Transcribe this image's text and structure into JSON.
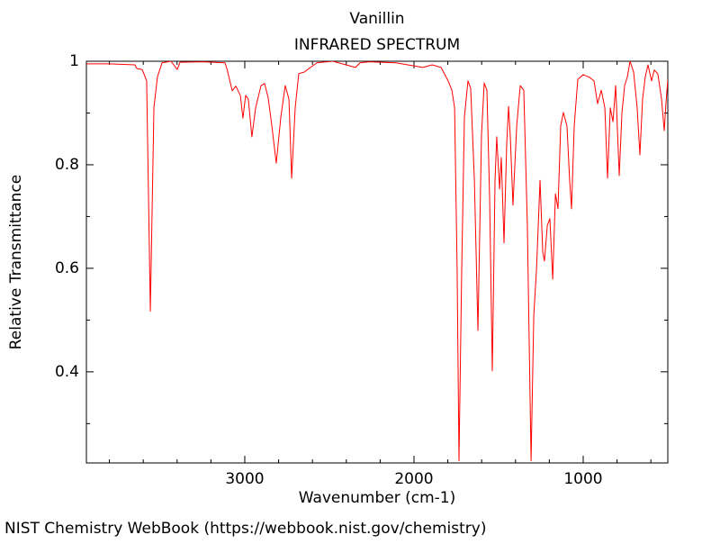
{
  "chart_data": {
    "type": "line",
    "title": "Vanillin",
    "subtitle": "INFRARED SPECTRUM",
    "x_label": "Wavenumber (cm-1)",
    "y_label": "Relative Transmittance",
    "source": "NIST Chemistry WebBook (https://webbook.nist.gov/chemistry)",
    "xlim": [
      3936,
      500
    ],
    "ylim": [
      0.224,
      1
    ],
    "xticks": [
      3000,
      2000,
      1000
    ],
    "yticks": [
      1,
      0.8,
      0.6,
      0.4
    ],
    "x_minor_ticks": [
      3800,
      3600,
      3400,
      3200,
      2800,
      2600,
      2400,
      2200,
      1800,
      1600,
      1400,
      1200,
      800,
      600
    ],
    "y_minor_ticks": [
      0.9,
      0.7,
      0.5,
      0.3
    ],
    "grid": false,
    "series": [
      {
        "color": "#ff0000",
        "x": [
          3936,
          3808,
          3649,
          3638,
          3606,
          3580,
          3558,
          3537,
          3516,
          3489,
          3436,
          3399,
          3383,
          3250,
          3117,
          3106,
          3074,
          3053,
          3026,
          3011,
          2995,
          2979,
          2958,
          2936,
          2904,
          2883,
          2862,
          2840,
          2814,
          2787,
          2761,
          2739,
          2723,
          2702,
          2681,
          2649,
          2612,
          2574,
          2479,
          2346,
          2319,
          2266,
          2106,
          1947,
          1893,
          1840,
          1798,
          1776,
          1760,
          1745,
          1734,
          1718,
          1702,
          1681,
          1665,
          1643,
          1622,
          1601,
          1585,
          1569,
          1553,
          1537,
          1521,
          1511,
          1494,
          1484,
          1468,
          1452,
          1441,
          1431,
          1415,
          1393,
          1372,
          1351,
          1330,
          1308,
          1292,
          1276,
          1255,
          1239,
          1229,
          1212,
          1197,
          1180,
          1164,
          1149,
          1133,
          1117,
          1096,
          1080,
          1069,
          1053,
          1032,
          1000,
          963,
          936,
          915,
          893,
          872,
          856,
          840,
          824,
          808,
          787,
          771,
          755,
          739,
          723,
          702,
          681,
          665,
          649,
          633,
          617,
          596,
          580,
          559,
          537,
          521,
          511,
          500
        ],
        "values": [
          0.995,
          0.995,
          0.993,
          0.986,
          0.984,
          0.962,
          0.517,
          0.91,
          0.97,
          0.997,
          1.0,
          0.984,
          0.998,
          0.999,
          0.997,
          0.986,
          0.943,
          0.952,
          0.934,
          0.89,
          0.934,
          0.927,
          0.854,
          0.91,
          0.953,
          0.957,
          0.93,
          0.875,
          0.803,
          0.892,
          0.953,
          0.927,
          0.774,
          0.91,
          0.976,
          0.979,
          0.988,
          0.997,
          1.0,
          0.988,
          0.997,
          0.999,
          0.997,
          0.988,
          0.993,
          0.988,
          0.962,
          0.944,
          0.91,
          0.597,
          0.228,
          0.597,
          0.892,
          0.962,
          0.948,
          0.77,
          0.48,
          0.857,
          0.958,
          0.944,
          0.736,
          0.402,
          0.77,
          0.854,
          0.753,
          0.814,
          0.649,
          0.84,
          0.913,
          0.857,
          0.722,
          0.875,
          0.953,
          0.944,
          0.683,
          0.228,
          0.51,
          0.597,
          0.77,
          0.631,
          0.614,
          0.683,
          0.696,
          0.579,
          0.744,
          0.715,
          0.875,
          0.901,
          0.875,
          0.77,
          0.715,
          0.875,
          0.965,
          0.974,
          0.969,
          0.962,
          0.918,
          0.944,
          0.91,
          0.774,
          0.91,
          0.883,
          0.953,
          0.779,
          0.901,
          0.953,
          0.97,
          1.0,
          0.979,
          0.91,
          0.819,
          0.927,
          0.97,
          0.993,
          0.962,
          0.983,
          0.976,
          0.927,
          0.866,
          0.918,
          0.965
        ]
      }
    ]
  }
}
